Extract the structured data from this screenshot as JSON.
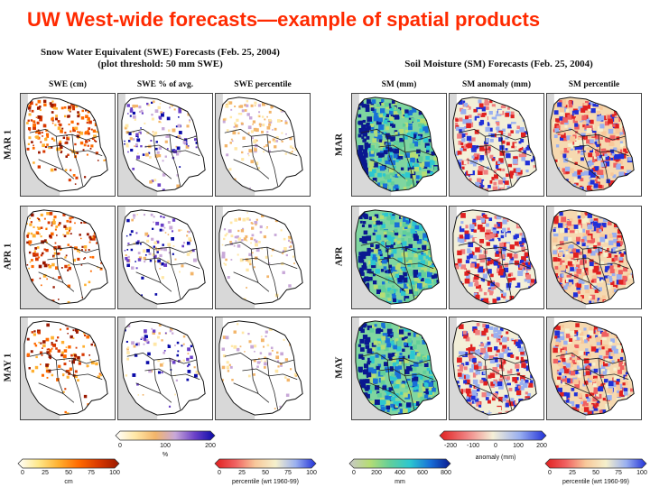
{
  "slide": {
    "title": "UW West-wide forecasts—example of spatial products"
  },
  "swe_panel": {
    "title_line1": "Snow Water Equivalent (SWE) Forecasts (Feb. 25, 2004)",
    "title_line2": "(plot threshold: 50 mm SWE)",
    "columns": [
      "SWE (cm)",
      "SWE % of avg.",
      "SWE percentile"
    ],
    "rows": [
      "MAR 1",
      "APR 1",
      "MAY 1"
    ]
  },
  "sm_panel": {
    "title": "Soil Moisture (SM) Forecasts (Feb. 25, 2004)",
    "columns": [
      "SM (mm)",
      "SM anomaly (mm)",
      "SM percentile"
    ],
    "rows": [
      "MAR",
      "APR",
      "MAY"
    ]
  },
  "colorbars": {
    "swe_cm": {
      "ticks": [
        "0",
        "25",
        "50",
        "75",
        "100"
      ],
      "unit": "cm"
    },
    "swe_pct_avg": {
      "ticks": [
        "0",
        "100",
        "200"
      ],
      "unit": "%"
    },
    "swe_percentile": {
      "ticks": [
        "0",
        "25",
        "50",
        "75",
        "100"
      ],
      "unit": "percentile (wrt 1960-99)"
    },
    "sm_mm": {
      "ticks": [
        "0",
        "200",
        "400",
        "600",
        "800"
      ],
      "unit": "mm"
    },
    "sm_anomaly": {
      "ticks": [
        "-200",
        "-100",
        "0",
        "100",
        "200"
      ],
      "unit": "anomaly (mm)"
    },
    "sm_percentile": {
      "ticks": [
        "0",
        "25",
        "50",
        "75",
        "100"
      ],
      "unit": "percentile (wrt 1960-99)"
    }
  },
  "colors": {
    "title": "#ff2a00",
    "swe_ramp": [
      "#ffffff",
      "#ffe88a",
      "#ffb030",
      "#ff6a00",
      "#d83800",
      "#9a1800"
    ],
    "pct_avg_ramp": [
      "#ffffff",
      "#ffe7a6",
      "#f3b56a",
      "#c8a8d8",
      "#6a40c8",
      "#0a0aa8"
    ],
    "percentile_ramp": [
      "#e02020",
      "#f06060",
      "#f8c89a",
      "#f5f0cc",
      "#9ab0f0",
      "#2030d8"
    ],
    "sm_ramp": [
      "#c8c8c8",
      "#b6dd74",
      "#62cf9a",
      "#2cc7d0",
      "#1870d8",
      "#0a1890"
    ],
    "anomaly_ramp": [
      "#e02020",
      "#f08080",
      "#f5f0d8",
      "#9ab0f0",
      "#2030d8"
    ]
  }
}
